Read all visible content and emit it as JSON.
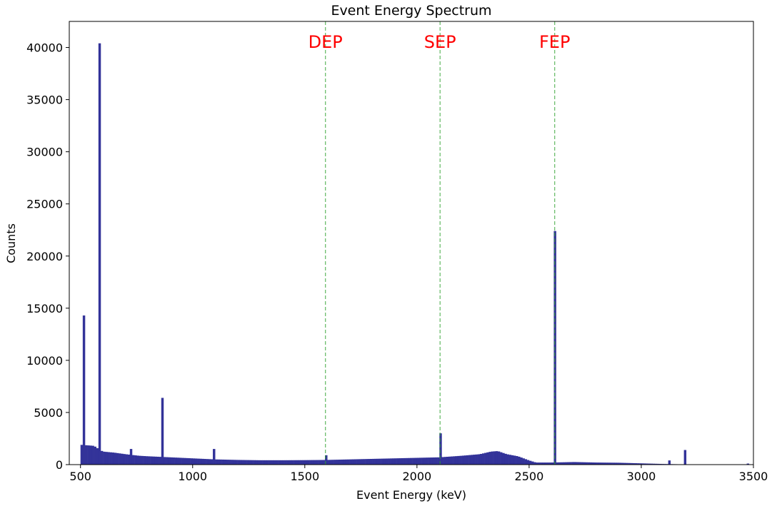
{
  "chart_data": {
    "type": "bar",
    "title": "Event Energy Spectrum",
    "xlabel": "Event Energy (keV)",
    "ylabel": "Counts",
    "xlim": [
      450,
      3500
    ],
    "ylim": [
      0,
      42500
    ],
    "xticks": [
      500,
      1000,
      1500,
      2000,
      2500,
      3000,
      3500
    ],
    "yticks": [
      0,
      5000,
      10000,
      15000,
      20000,
      25000,
      30000,
      35000,
      40000
    ],
    "bar_color": "#333399",
    "bin_width": 10,
    "baseline": [
      [
        500,
        1900
      ],
      [
        560,
        1800
      ],
      [
        580,
        1500
      ],
      [
        600,
        1250
      ],
      [
        650,
        1150
      ],
      [
        700,
        1000
      ],
      [
        760,
        850
      ],
      [
        800,
        800
      ],
      [
        900,
        700
      ],
      [
        1000,
        600
      ],
      [
        1100,
        500
      ],
      [
        1200,
        450
      ],
      [
        1300,
        420
      ],
      [
        1400,
        420
      ],
      [
        1500,
        430
      ],
      [
        1600,
        450
      ],
      [
        1700,
        500
      ],
      [
        1800,
        550
      ],
      [
        1900,
        600
      ],
      [
        2000,
        650
      ],
      [
        2100,
        700
      ],
      [
        2200,
        850
      ],
      [
        2280,
        1000
      ],
      [
        2330,
        1250
      ],
      [
        2360,
        1300
      ],
      [
        2400,
        1000
      ],
      [
        2450,
        800
      ],
      [
        2500,
        400
      ],
      [
        2530,
        200
      ],
      [
        2600,
        200
      ],
      [
        2700,
        250
      ],
      [
        2800,
        200
      ],
      [
        2900,
        180
      ],
      [
        3000,
        120
      ],
      [
        3100,
        60
      ],
      [
        3200,
        20
      ],
      [
        3300,
        10
      ],
      [
        3500,
        5
      ]
    ],
    "peaks": [
      {
        "x": 510,
        "value": 14300
      },
      {
        "x": 583,
        "value": 40400
      },
      {
        "x": 727,
        "value": 1500
      },
      {
        "x": 860,
        "value": 6400
      },
      {
        "x": 1093,
        "value": 1500
      },
      {
        "x": 1592,
        "value": 900
      },
      {
        "x": 2103,
        "value": 3000
      },
      {
        "x": 2614,
        "value": 22400
      },
      {
        "x": 3125,
        "value": 400
      },
      {
        "x": 3197,
        "value": 1400
      },
      {
        "x": 3475,
        "value": 100
      }
    ],
    "markers": [
      {
        "label": "DEP",
        "x": 1592,
        "color": "#ff0000",
        "line_color": "#2ca02c"
      },
      {
        "label": "SEP",
        "x": 2103,
        "color": "#ff0000",
        "line_color": "#2ca02c"
      },
      {
        "label": "FEP",
        "x": 2614,
        "color": "#ff0000",
        "line_color": "#2ca02c"
      }
    ],
    "grid": false,
    "legend": "none"
  }
}
